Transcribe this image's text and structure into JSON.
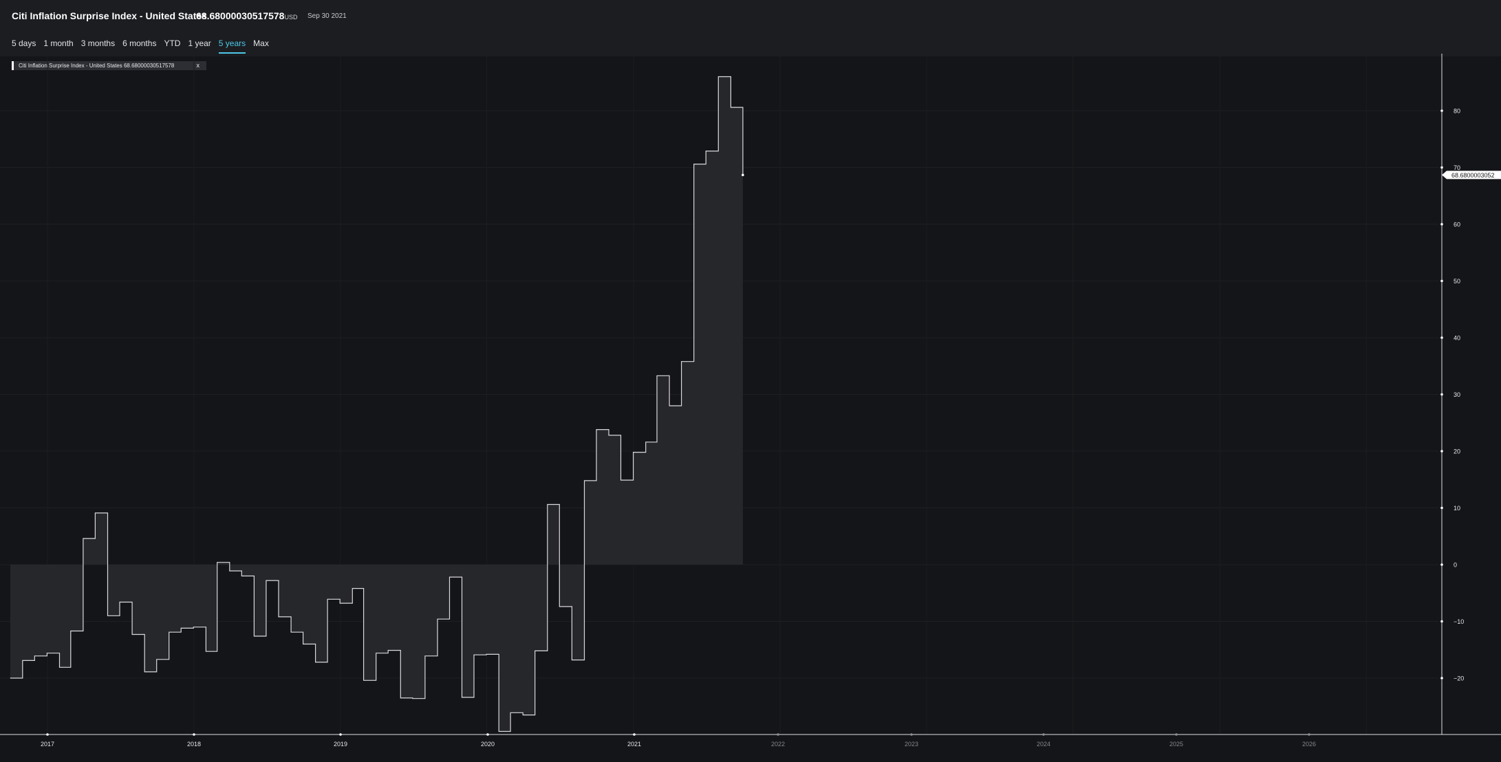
{
  "header": {
    "title": "Citi Inflation Surprise Index - United States",
    "price": "68.68000030517578",
    "currency": "USD",
    "date": "Sep 30 2021"
  },
  "ranges": [
    {
      "label": "5 days",
      "active": false
    },
    {
      "label": "1 month",
      "active": false
    },
    {
      "label": "3 months",
      "active": false
    },
    {
      "label": "6 months",
      "active": false
    },
    {
      "label": "YTD",
      "active": false
    },
    {
      "label": "1 year",
      "active": false
    },
    {
      "label": "5 years",
      "active": true
    },
    {
      "label": "Max",
      "active": false
    }
  ],
  "legend": {
    "label": "Citi Inflation Surprise Index - United States 68.68000030517578",
    "close": "x"
  },
  "colors": {
    "background": "#141518",
    "line": "#d9dadd",
    "fill": "#26272b",
    "accent": "#4fc8e8"
  },
  "chart_data": {
    "type": "area",
    "series": [
      {
        "name": "Citi Inflation Surprise Index - United States",
        "step": true,
        "baseline": 0,
        "x": [
          "2016-09-30",
          "2016-10-31",
          "2016-11-30",
          "2016-12-31",
          "2017-01-31",
          "2017-02-28",
          "2017-03-31",
          "2017-04-30",
          "2017-05-31",
          "2017-06-30",
          "2017-07-31",
          "2017-08-31",
          "2017-09-30",
          "2017-10-31",
          "2017-11-30",
          "2017-12-31",
          "2018-01-31",
          "2018-02-28",
          "2018-03-31",
          "2018-04-30",
          "2018-05-31",
          "2018-06-30",
          "2018-07-31",
          "2018-08-31",
          "2018-09-30",
          "2018-10-31",
          "2018-11-30",
          "2018-12-31",
          "2019-01-31",
          "2019-02-28",
          "2019-03-31",
          "2019-04-30",
          "2019-05-31",
          "2019-06-30",
          "2019-07-31",
          "2019-08-31",
          "2019-09-30",
          "2019-10-31",
          "2019-11-30",
          "2019-12-31",
          "2020-01-31",
          "2020-02-29",
          "2020-03-31",
          "2020-04-30",
          "2020-05-31",
          "2020-06-30",
          "2020-07-31",
          "2020-08-31",
          "2020-09-30",
          "2020-10-31",
          "2020-11-30",
          "2020-12-31",
          "2021-01-31",
          "2021-02-28",
          "2021-03-31",
          "2021-04-30",
          "2021-05-31",
          "2021-06-30",
          "2021-07-31",
          "2021-08-31",
          "2021-09-30"
        ],
        "values": [
          -20.0,
          -16.9,
          -16.1,
          -15.6,
          -18.1,
          -11.7,
          4.6,
          9.1,
          -9.0,
          -6.6,
          -12.3,
          -18.9,
          -16.7,
          -11.9,
          -11.2,
          -11.0,
          -15.3,
          0.4,
          -1.1,
          -2.0,
          -12.6,
          -2.8,
          -9.2,
          -11.9,
          -14.0,
          -17.2,
          -6.1,
          -6.8,
          -4.2,
          -20.4,
          -15.6,
          -15.1,
          -23.5,
          -23.6,
          -16.1,
          -9.6,
          -2.2,
          -23.4,
          -15.9,
          -15.8,
          -29.4,
          -26.1,
          -26.5,
          -15.2,
          10.6,
          -7.4,
          -16.8,
          14.8,
          23.8,
          22.8,
          14.9,
          19.8,
          21.6,
          33.3,
          28.0,
          35.8,
          70.6,
          72.9,
          86.0,
          80.6,
          68.68000030517578
        ]
      }
    ],
    "x_ticks": [
      "2017",
      "2018",
      "2019",
      "2020",
      "2021",
      "2022",
      "2023",
      "2024",
      "2025",
      "2026"
    ],
    "x_tick_dates": [
      "2017-01-01",
      "2018-01-01",
      "2019-01-01",
      "2020-01-01",
      "2021-01-01",
      "2022-01-01",
      "2023-01-01",
      "2024-01-01",
      "2025-01-01",
      "2026-01-01"
    ],
    "y_ticks": [
      80,
      70,
      60,
      50,
      40,
      30,
      20,
      10,
      0,
      -10,
      -20
    ],
    "y_tick_labels": [
      "80",
      "70",
      "60",
      "50",
      "40",
      "30",
      "20",
      "10",
      "0",
      "−10",
      "−20"
    ],
    "last_value_label": "68.6800003052",
    "grid": true,
    "legend_position": "top-left"
  }
}
